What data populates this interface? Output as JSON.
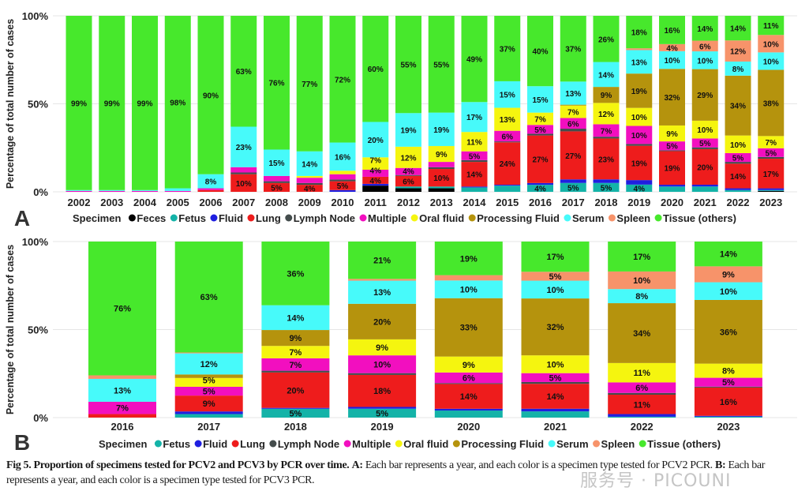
{
  "colors": {
    "Feces": "#000000",
    "Fetus": "#14b3a8",
    "Fluid": "#1f1fe0",
    "Lung": "#ee1c1c",
    "Lymph Node": "#444c4c",
    "Multiple": "#f20fbf",
    "Oral fluid": "#f5f50f",
    "Processing Fluid": "#b5930d",
    "Serum": "#47fafa",
    "Spleen": "#f7936a",
    "Tissue (others)": "#47e82c"
  },
  "chart_data": [
    {
      "type": "bar",
      "stacked": true,
      "panel_label": "A",
      "ylabel": "Percentage of total number of cases",
      "ylim": [
        0,
        100
      ],
      "yticks": [
        "0%",
        "50%",
        "100%"
      ],
      "grid": true,
      "legend_title": "Specimen",
      "legend_placement": "bottom",
      "categories": [
        "2002",
        "2003",
        "2004",
        "2005",
        "2006",
        "2007",
        "2008",
        "2009",
        "2010",
        "2011",
        "2012",
        "2013",
        "2014",
        "2015",
        "2016",
        "2017",
        "2018",
        "2019",
        "2020",
        "2021",
        "2022",
        "2023"
      ],
      "series": [
        {
          "name": "Feces",
          "values": [
            0,
            0,
            0,
            0,
            0,
            0,
            0,
            0,
            0,
            3.5,
            2,
            2,
            0,
            0,
            0,
            0,
            0,
            0,
            0,
            0,
            0,
            0.5
          ]
        },
        {
          "name": "Fetus",
          "values": [
            0,
            0,
            0,
            0,
            0,
            0,
            0,
            0,
            0,
            0,
            1,
            1,
            2.5,
            3.5,
            4,
            5,
            5,
            4,
            3,
            3,
            1,
            0.5
          ]
        },
        {
          "name": "Fluid",
          "values": [
            0,
            0,
            0,
            0,
            0,
            0,
            0,
            0,
            1,
            1,
            0,
            0,
            0.5,
            0.5,
            1,
            2,
            2,
            2.5,
            1,
            1,
            1,
            1
          ]
        },
        {
          "name": "Lung",
          "values": [
            0,
            0,
            0,
            0,
            1,
            10,
            5,
            4,
            5,
            4,
            6,
            10,
            14,
            24,
            27,
            27,
            23,
            19,
            19,
            20,
            14,
            17
          ]
        },
        {
          "name": "Lymph Node",
          "values": [
            0,
            0,
            0,
            0,
            0,
            1,
            1,
            1,
            1,
            0,
            0.5,
            1,
            1,
            0.5,
            1,
            1.5,
            1,
            1,
            0.5,
            1,
            1,
            1
          ]
        },
        {
          "name": "Multiple",
          "values": [
            0.5,
            0.5,
            0.5,
            0.5,
            1,
            3,
            3,
            3,
            3,
            4,
            4,
            3,
            5,
            6,
            5,
            6,
            7,
            10,
            5,
            5,
            5,
            5
          ]
        },
        {
          "name": "Oral fluid",
          "values": [
            0,
            0,
            0,
            0,
            0,
            0,
            0,
            1,
            2,
            7,
            12,
            9,
            11,
            13,
            7,
            7,
            12,
            10,
            9,
            10,
            10,
            7
          ]
        },
        {
          "name": "Processing Fluid",
          "values": [
            0,
            0,
            0,
            0,
            0,
            0,
            0,
            0,
            0,
            0,
            0,
            0,
            0,
            0,
            0,
            0.5,
            9,
            19,
            32,
            29,
            34,
            38
          ]
        },
        {
          "name": "Serum",
          "values": [
            0.5,
            0.5,
            0.5,
            1.5,
            8,
            23,
            15,
            14,
            16,
            20,
            19,
            19,
            17,
            15,
            15,
            13,
            14,
            13,
            10,
            10,
            8,
            10
          ]
        },
        {
          "name": "Spleen",
          "values": [
            0,
            0,
            0,
            0,
            0,
            0,
            0,
            0,
            0,
            0,
            0,
            0,
            0,
            0,
            0,
            0,
            0,
            1,
            4,
            6,
            12,
            10
          ]
        },
        {
          "name": "Tissue (others)",
          "values": [
            99,
            99,
            99,
            98,
            90,
            63,
            76,
            77,
            72,
            60,
            55,
            55,
            49,
            37,
            40,
            37,
            26,
            18,
            16,
            14,
            14,
            11
          ]
        }
      ]
    },
    {
      "type": "bar",
      "stacked": true,
      "panel_label": "B",
      "ylabel": "Percentage of total number of cases",
      "ylim": [
        0,
        100
      ],
      "yticks": [
        "0%",
        "50%",
        "100%"
      ],
      "grid": true,
      "legend_title": "Specimen",
      "legend_placement": "bottom",
      "categories": [
        "2016",
        "2017",
        "2018",
        "2019",
        "2020",
        "2021",
        "2022",
        "2023"
      ],
      "series": [
        {
          "name": "Fetus",
          "values": [
            0,
            2,
            5,
            5,
            4,
            3.5,
            0.5,
            0.5
          ]
        },
        {
          "name": "Fluid",
          "values": [
            0,
            1.5,
            0.5,
            1,
            1,
            1.5,
            1.5,
            0.5
          ]
        },
        {
          "name": "Lung",
          "values": [
            2,
            9,
            20,
            18,
            14,
            14,
            11,
            16
          ]
        },
        {
          "name": "Lymph Node",
          "values": [
            0,
            0,
            1,
            1,
            0.5,
            1,
            1,
            0.5
          ]
        },
        {
          "name": "Multiple",
          "values": [
            7,
            5,
            7,
            10,
            6,
            5,
            6,
            5
          ]
        },
        {
          "name": "Oral fluid",
          "values": [
            0,
            5,
            7,
            9,
            9,
            10,
            11,
            8
          ]
        },
        {
          "name": "Processing Fluid",
          "values": [
            0,
            2,
            9,
            20,
            33,
            32,
            34,
            36
          ]
        },
        {
          "name": "Serum",
          "values": [
            13,
            12,
            14,
            13,
            10,
            10,
            8,
            10
          ]
        },
        {
          "name": "Spleen",
          "values": [
            2,
            0.5,
            0,
            1,
            3,
            5,
            10,
            9
          ]
        },
        {
          "name": "Tissue (others)",
          "values": [
            76,
            63,
            36,
            21,
            19,
            17,
            17,
            14
          ]
        }
      ]
    }
  ],
  "caption": {
    "bold": "Fig 5. Proportion of specimens tested for PCV2 and PCV3 by PCR over time.",
    "a_label": "A:",
    "a_text": "Each bar represents a year, and each color is a specimen type tested for PCV2 PCR.",
    "b_label": "B:",
    "b_text": "Each bar represents a year, and each color is a specimen type tested for PCV3 PCR."
  },
  "watermark": "服务号 · PICOUNI"
}
